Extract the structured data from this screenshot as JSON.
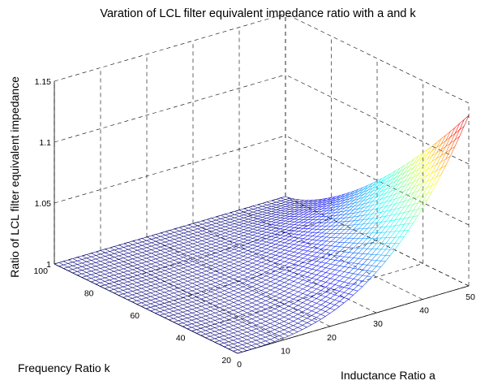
{
  "chart_data": {
    "type": "surface",
    "title": "Varation of LCL filter equivalent impedance ratio with a and k",
    "xlabel": "Inductance Ratio a",
    "ylabel": "Frequency Ratio k",
    "zlabel": "Ratio of LCL filter equivalent impedance",
    "xlim": [
      0,
      50
    ],
    "ylim": [
      20,
      100
    ],
    "zlim": [
      1,
      1.15
    ],
    "x_ticks": [
      "0",
      "10",
      "20",
      "30",
      "40",
      "50"
    ],
    "y_ticks": [
      "20",
      "40",
      "60",
      "80",
      "100"
    ],
    "z_ticks": [
      "1",
      "1.05",
      "1.1",
      "1.15"
    ],
    "grid": true,
    "colormap": "jet",
    "sample_points": [
      {
        "a": 50,
        "k": 20,
        "ratio": 1.14
      },
      {
        "a": 50,
        "k": 60,
        "ratio": 1.02
      },
      {
        "a": 50,
        "k": 100,
        "ratio": 1.0
      },
      {
        "a": 25,
        "k": 20,
        "ratio": 1.01
      },
      {
        "a": 0,
        "k": 100,
        "ratio": 1.0
      }
    ]
  }
}
